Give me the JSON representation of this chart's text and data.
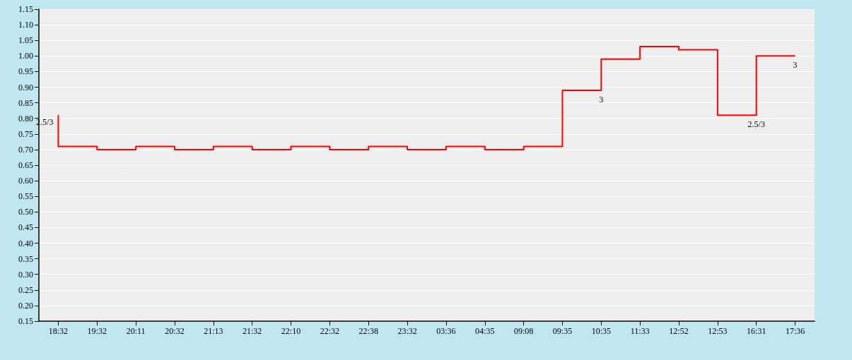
{
  "chart_data": {
    "type": "step",
    "categories": [
      "18:32",
      "19:32",
      "20:11",
      "20:32",
      "21:13",
      "21:32",
      "22:10",
      "22:32",
      "22:38",
      "23:32",
      "03:36",
      "04:35",
      "09:08",
      "09:35",
      "10:35",
      "11:33",
      "12:52",
      "12:53",
      "16:31",
      "17:36"
    ],
    "series": [
      {
        "color": "#ff0000",
        "values": [
          0.81,
          0.71,
          0.7,
          0.71,
          0.7,
          0.71,
          0.7,
          0.71,
          0.7,
          0.71,
          0.7,
          0.71,
          0.7,
          0.71,
          0.89,
          0.99,
          1.03,
          1.02,
          0.81,
          1.0
        ]
      }
    ],
    "ylim": [
      0.15,
      1.15
    ],
    "yticks": [
      {
        "value": 0.15,
        "label": "0.15"
      },
      {
        "value": 0.2,
        "label": "0.20"
      },
      {
        "value": 0.25,
        "label": "0.25"
      },
      {
        "value": 0.3,
        "label": "0.30"
      },
      {
        "value": 0.35,
        "label": "0.35"
      },
      {
        "value": 0.4,
        "label": "0.40"
      },
      {
        "value": 0.45,
        "label": "0.45"
      },
      {
        "value": 0.5,
        "label": "0.50"
      },
      {
        "value": 0.55,
        "label": "0.55"
      },
      {
        "value": 0.6,
        "label": "0.60"
      },
      {
        "value": 0.65,
        "label": "0.65"
      },
      {
        "value": 0.7,
        "label": "0.70"
      },
      {
        "value": 0.75,
        "label": "0.75"
      },
      {
        "value": 0.8,
        "label": "0.80"
      },
      {
        "value": 0.85,
        "label": "0.85"
      },
      {
        "value": 0.9,
        "label": "0.90"
      },
      {
        "value": 0.95,
        "label": "0.95"
      },
      {
        "value": 1.0,
        "label": "1.00"
      },
      {
        "value": 1.05,
        "label": "1.05"
      },
      {
        "value": 1.1,
        "label": "1.10"
      },
      {
        "value": 1.15,
        "label": "1.15"
      }
    ],
    "annotations": [
      {
        "text": "2.5/3",
        "x": "18:32",
        "y": 0.81
      },
      {
        "text": "3",
        "x": "10:35",
        "y": 0.89
      },
      {
        "text": "2.5/3",
        "x": "16:31",
        "y": 0.81
      },
      {
        "text": "3",
        "x": "17:36",
        "y": 1.0
      }
    ],
    "grid": "y",
    "marker": "none",
    "line_style": "solid"
  }
}
